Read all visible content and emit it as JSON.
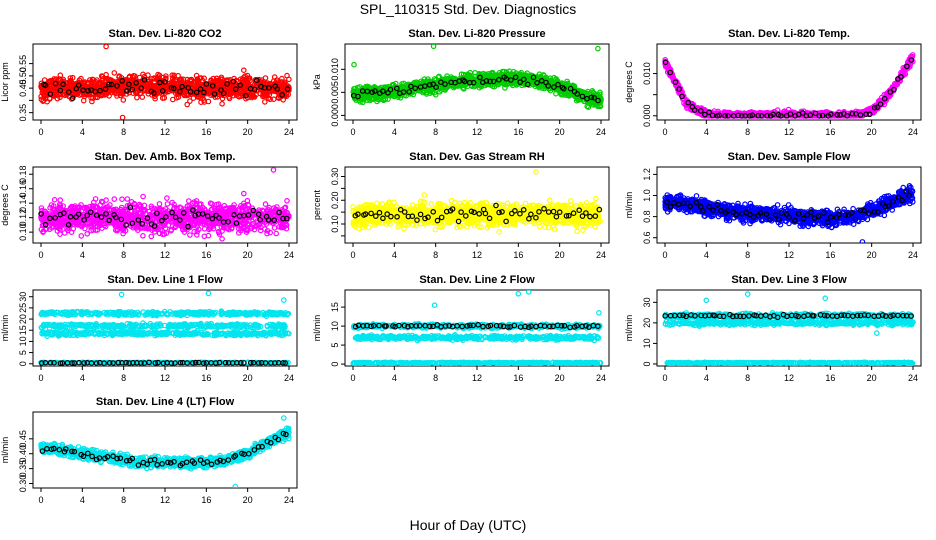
{
  "figure": {
    "title": "SPL_110315  Std. Dev. Diagnostics",
    "xlabel": "Hour of Day (UTC)"
  },
  "chart_data": [
    {
      "type": "scatter",
      "title": "Stan. Dev. Li-820 CO2",
      "ylabel": "Licor ppm",
      "xlim": [
        0,
        24
      ],
      "ylim": [
        0.32,
        0.63
      ],
      "xticks": [
        0,
        4,
        8,
        12,
        16,
        20,
        24
      ],
      "yticks": [
        0.35,
        0.4,
        0.45,
        0.5,
        0.55
      ],
      "ytick_labels": [
        "0.35",
        "",
        "0.45",
        "0.50",
        "0.55"
      ],
      "color": "#ff0000",
      "points": 1200,
      "trend": [
        0.44,
        0.45,
        0.45,
        0.45,
        0.46,
        0.46,
        0.46,
        0.45,
        0.45,
        0.45,
        0.45,
        0.45,
        0.45
      ],
      "spread": 0.055,
      "outliers": [
        [
          6.3,
          0.62
        ],
        [
          7.9,
          0.33
        ]
      ]
    },
    {
      "type": "scatter",
      "title": "Stan. Dev. Li-820 Pressure",
      "ylabel": "kPa",
      "xlim": [
        0,
        24
      ],
      "ylim": [
        -0.001,
        0.0155
      ],
      "xticks": [
        0,
        4,
        8,
        12,
        16,
        20,
        24
      ],
      "yticks": [
        0,
        0.005,
        0.01
      ],
      "ytick_labels": [
        "0.000",
        "0.005",
        "0.010"
      ],
      "color": "#00cc00",
      "points": 1400,
      "trend": [
        0.0045,
        0.0048,
        0.0052,
        0.006,
        0.0066,
        0.0072,
        0.0076,
        0.0079,
        0.008,
        0.0075,
        0.0062,
        0.0045,
        0.003
      ],
      "spread": 0.0018,
      "outliers": [
        [
          7.8,
          0.015
        ],
        [
          23.7,
          0.0145
        ],
        [
          0.1,
          0.011
        ]
      ]
    },
    {
      "type": "scatter",
      "title": "Stan. Dev. Li-820 Temp.",
      "ylabel": "degrees C",
      "xlim": [
        0,
        24
      ],
      "ylim": [
        -0.001,
        0.017
      ],
      "xticks": [
        0,
        4,
        8,
        12,
        16,
        20,
        24
      ],
      "yticks": [
        0,
        0.005,
        0.01
      ],
      "ytick_labels": [
        "0.000",
        "",
        "0.010"
      ],
      "color": "#ff00ff",
      "points": 1200,
      "trend": [
        0.013,
        0.003,
        0.0002,
        0,
        0,
        0,
        0,
        0,
        0,
        0,
        0.001,
        0.006,
        0.014
      ],
      "spread": 0.0012,
      "outliers": []
    },
    {
      "type": "scatter",
      "title": "Stan. Dev. Amb. Box Temp.",
      "ylabel": "degrees C",
      "xlim": [
        0,
        24
      ],
      "ylim": [
        0.085,
        0.19
      ],
      "xticks": [
        0,
        4,
        8,
        12,
        16,
        20,
        24
      ],
      "yticks": [
        0.1,
        0.12,
        0.14,
        0.16,
        0.18
      ],
      "ytick_labels": [
        "0.10",
        "0.12",
        "0.14",
        "0.16",
        "0.18"
      ],
      "color": "#ff00ff",
      "points": 1200,
      "trend": [
        0.12,
        0.12,
        0.12,
        0.12,
        0.12,
        0.12,
        0.12,
        0.12,
        0.12,
        0.12,
        0.12,
        0.12,
        0.12
      ],
      "spread": 0.025,
      "outliers": [
        [
          22.5,
          0.186
        ]
      ]
    },
    {
      "type": "scatter",
      "title": "Stan. Dev. Gas Stream RH",
      "ylabel": "percent",
      "xlim": [
        0,
        24
      ],
      "ylim": [
        0.02,
        0.34
      ],
      "xticks": [
        0,
        4,
        8,
        12,
        16,
        20,
        24
      ],
      "yticks": [
        0.05,
        0.1,
        0.15,
        0.2,
        0.25,
        0.3
      ],
      "ytick_labels": [
        "",
        "0.10",
        "",
        "0.20",
        "",
        "0.30"
      ],
      "color": "#ffff00",
      "points": 1200,
      "trend": [
        0.13,
        0.14,
        0.14,
        0.14,
        0.14,
        0.14,
        0.14,
        0.14,
        0.14,
        0.14,
        0.14,
        0.14,
        0.14
      ],
      "spread": 0.06,
      "outliers": [
        [
          17.7,
          0.32
        ]
      ]
    },
    {
      "type": "scatter",
      "title": "Stan. Dev. Sample Flow",
      "ylabel": "ml/min",
      "xlim": [
        0,
        24
      ],
      "ylim": [
        0.55,
        1.27
      ],
      "xticks": [
        0,
        4,
        8,
        12,
        16,
        20,
        24
      ],
      "yticks": [
        0.6,
        0.8,
        1.0,
        1.2
      ],
      "ytick_labels": [
        "0.6",
        "0.8",
        "1.0",
        "1.2"
      ],
      "color": "#0000ff",
      "points": 1300,
      "trend": [
        0.95,
        0.92,
        0.88,
        0.85,
        0.83,
        0.82,
        0.8,
        0.79,
        0.79,
        0.8,
        0.86,
        0.95,
        1.02
      ],
      "spread": 0.09,
      "outliers": [
        [
          19.1,
          0.56
        ]
      ]
    },
    {
      "type": "scatter",
      "title": "Stan. Dev. Line 1 Flow",
      "ylabel": "ml/min",
      "xlim": [
        0,
        24
      ],
      "ylim": [
        -1,
        33
      ],
      "xticks": [
        0,
        4,
        8,
        12,
        16,
        20,
        24
      ],
      "yticks": [
        0,
        5,
        10,
        15,
        20,
        25,
        30
      ],
      "ytick_labels": [
        "0",
        "5",
        "10",
        "15",
        "20",
        "25",
        "30"
      ],
      "color": "#00e5ee",
      "bands": [
        [
          0.4,
          0.3
        ],
        [
          13.5,
          1.0
        ],
        [
          17,
          1.0
        ],
        [
          22.5,
          1.0
        ]
      ],
      "points": 1400,
      "outliers": [
        [
          7.8,
          31.0
        ],
        [
          16.2,
          31.5
        ],
        [
          23.5,
          28.5
        ]
      ]
    },
    {
      "type": "scatter",
      "title": "Stan. Dev. Line 2 Flow",
      "ylabel": "ml/min",
      "xlim": [
        0,
        24
      ],
      "ylim": [
        -0.5,
        19.5
      ],
      "xticks": [
        0,
        4,
        8,
        12,
        16,
        20,
        24
      ],
      "yticks": [
        0,
        5,
        10,
        15
      ],
      "ytick_labels": [
        "0",
        "5",
        "10",
        "15"
      ],
      "color": "#00e5ee",
      "bands": [
        [
          0.3,
          0.2
        ],
        [
          7,
          0.6
        ],
        [
          10,
          0.6
        ]
      ],
      "points": 1300,
      "outliers": [
        [
          7.9,
          15.5
        ],
        [
          16,
          18.5
        ],
        [
          17,
          19
        ],
        [
          23.8,
          13.5
        ]
      ]
    },
    {
      "type": "scatter",
      "title": "Stan. Dev. Line 3 Flow",
      "ylabel": "ml/min",
      "xlim": [
        0,
        24
      ],
      "ylim": [
        -1,
        36
      ],
      "xticks": [
        0,
        4,
        8,
        12,
        16,
        20,
        24
      ],
      "yticks": [
        0,
        10,
        20,
        30
      ],
      "ytick_labels": [
        "0",
        "10",
        "20",
        "30"
      ],
      "color": "#00e5ee",
      "bands": [
        [
          0.5,
          0.3
        ],
        [
          20,
          1.2
        ],
        [
          23.5,
          1.2
        ]
      ],
      "points": 1300,
      "outliers": [
        [
          4,
          31
        ],
        [
          8,
          34
        ],
        [
          15.5,
          32
        ],
        [
          20.5,
          15
        ]
      ]
    },
    {
      "type": "scatter",
      "title": "Stan. Dev. Line 4 (LT) Flow",
      "ylabel": "ml/min",
      "xlim": [
        0,
        24
      ],
      "ylim": [
        0.285,
        0.54
      ],
      "xticks": [
        0,
        4,
        8,
        12,
        16,
        20,
        24
      ],
      "yticks": [
        0.3,
        0.35,
        0.4,
        0.45
      ],
      "ytick_labels": [
        "0.30",
        "0.35",
        "0.40",
        "0.45"
      ],
      "color": "#00e5ee",
      "points": 1300,
      "trend": [
        0.42,
        0.41,
        0.4,
        0.39,
        0.38,
        0.37,
        0.37,
        0.37,
        0.37,
        0.38,
        0.4,
        0.44,
        0.47
      ],
      "spread": 0.02,
      "outliers": [
        [
          18.8,
          0.29
        ],
        [
          23.5,
          0.52
        ]
      ]
    }
  ]
}
